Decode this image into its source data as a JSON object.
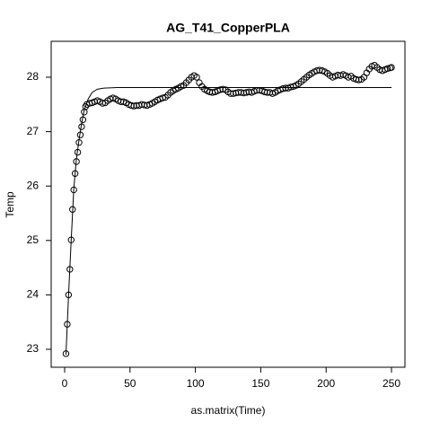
{
  "chart_data": {
    "type": "scatter",
    "title": "AG_T41_CopperPLA",
    "x_label": "as.matrix(Time)",
    "y_label": "Temp",
    "xlim": [
      -10.3,
      260.3
    ],
    "ylim": [
      22.67,
      28.66
    ],
    "xticks": [
      0,
      50,
      100,
      150,
      200,
      250
    ],
    "yticks": [
      23,
      24,
      25,
      26,
      27,
      28
    ],
    "series": [
      {
        "style": "points",
        "color": "#000000",
        "x": [
          1,
          2,
          3,
          4,
          5,
          6,
          7,
          8,
          9,
          10,
          11,
          12,
          13,
          14,
          15,
          16,
          17,
          19,
          21,
          23,
          25,
          27,
          29,
          31,
          33,
          35,
          37,
          39,
          41,
          43,
          45,
          47,
          49,
          51,
          53,
          55,
          57,
          59,
          61,
          63,
          65,
          67,
          69,
          71,
          73,
          75,
          77,
          79,
          81,
          83,
          85,
          87,
          89,
          91,
          93,
          95,
          97,
          99,
          101,
          103,
          105,
          107,
          109,
          111,
          113,
          115,
          117,
          119,
          121,
          123,
          125,
          127,
          129,
          131,
          133,
          135,
          137,
          139,
          141,
          143,
          145,
          147,
          149,
          151,
          153,
          155,
          157,
          159,
          161,
          163,
          165,
          167,
          169,
          171,
          173,
          175,
          177,
          179,
          181,
          183,
          185,
          187,
          189,
          191,
          193,
          195,
          197,
          199,
          201,
          203,
          205,
          207,
          209,
          211,
          213,
          215,
          217,
          219,
          221,
          223,
          225,
          227,
          229,
          231,
          233,
          235,
          237,
          239,
          241,
          243,
          245,
          247,
          249,
          250
        ],
        "values": [
          22.92,
          23.46,
          24.0,
          24.47,
          25.01,
          25.57,
          25.93,
          26.23,
          26.45,
          26.62,
          26.8,
          26.94,
          27.09,
          27.22,
          27.36,
          27.46,
          27.5,
          27.52,
          27.53,
          27.55,
          27.57,
          27.55,
          27.52,
          27.53,
          27.57,
          27.6,
          27.62,
          27.6,
          27.57,
          27.55,
          27.55,
          27.53,
          27.5,
          27.48,
          27.47,
          27.48,
          27.48,
          27.5,
          27.49,
          27.48,
          27.5,
          27.52,
          27.55,
          27.58,
          27.6,
          27.62,
          27.63,
          27.67,
          27.72,
          27.75,
          27.78,
          27.8,
          27.83,
          27.85,
          27.9,
          27.95,
          28.0,
          28.03,
          28.0,
          27.9,
          27.83,
          27.78,
          27.75,
          27.73,
          27.72,
          27.73,
          27.75,
          27.77,
          27.78,
          27.77,
          27.73,
          27.7,
          27.7,
          27.71,
          27.72,
          27.72,
          27.71,
          27.72,
          27.73,
          27.72,
          27.74,
          27.76,
          27.76,
          27.75,
          27.73,
          27.72,
          27.72,
          27.7,
          27.72,
          27.75,
          27.77,
          27.79,
          27.8,
          27.8,
          27.82,
          27.83,
          27.85,
          27.88,
          27.92,
          27.96,
          28.0,
          28.04,
          28.07,
          28.1,
          28.12,
          28.13,
          28.12,
          28.1,
          28.07,
          28.03,
          28.0,
          28.02,
          28.04,
          28.03,
          28.05,
          28.03,
          28.0,
          28.02,
          27.98,
          27.96,
          27.95,
          27.96,
          28.0,
          28.08,
          28.15,
          28.2,
          28.22,
          28.18,
          28.14,
          28.12,
          28.14,
          28.16,
          28.17,
          28.18
        ]
      },
      {
        "style": "line",
        "color": "#000000",
        "x": [
          1,
          3,
          5,
          7,
          9,
          11,
          13,
          15,
          18,
          21,
          25,
          30,
          40,
          250
        ],
        "values": [
          22.9,
          24.0,
          25.0,
          25.95,
          26.5,
          26.85,
          27.15,
          27.4,
          27.6,
          27.72,
          27.78,
          27.8,
          27.81,
          27.81
        ]
      }
    ]
  }
}
